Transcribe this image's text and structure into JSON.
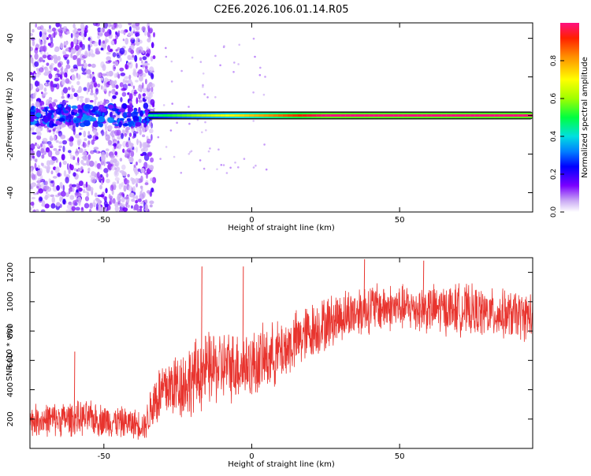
{
  "title": "C2E6.2026.106.01.14.R05",
  "chart_data": [
    {
      "type": "heatmap",
      "xlabel": "Height of straight line (km)",
      "ylabel": "Frequency (Hz)",
      "xlim": [
        -75,
        95
      ],
      "ylim": [
        -50,
        48
      ],
      "xticks": [
        -50,
        0,
        50
      ],
      "yticks": [
        40,
        20,
        0,
        -20,
        -40
      ],
      "colorbar": {
        "label": "Normalized spectral amplitude",
        "range": [
          0,
          1
        ],
        "ticks": [
          0.0,
          0.2,
          0.4,
          0.6,
          0.8
        ]
      },
      "features": [
        {
          "name": "broadband noise region",
          "x_range": [
            -75,
            -35
          ],
          "amplitude": "low (0.1-0.3)"
        },
        {
          "name": "signal line",
          "frequency_hz": 0,
          "x_range": [
            -35,
            95
          ],
          "amplitude_left": 0.45,
          "amplitude_right": 1.0
        }
      ]
    },
    {
      "type": "line",
      "xlabel": "Height of straight line (km)",
      "ylabel": "SNR (10 * v/v)",
      "xlim": [
        -75,
        95
      ],
      "ylim": [
        0,
        1300
      ],
      "xticks": [
        -50,
        0,
        50
      ],
      "yticks": [
        200,
        400,
        600,
        800,
        1000,
        1200
      ],
      "color": "#e8342e",
      "series": [
        {
          "name": "SNR",
          "x": [
            -75,
            -65,
            -55,
            -45,
            -36,
            -33,
            -28,
            -22,
            -15,
            -8,
            0,
            10,
            20,
            30,
            40,
            50,
            60,
            70,
            80,
            95
          ],
          "mean": [
            190,
            200,
            205,
            180,
            160,
            330,
            420,
            450,
            540,
            560,
            570,
            660,
            800,
            900,
            960,
            960,
            950,
            950,
            920,
            900
          ],
          "spread": [
            110,
            120,
            120,
            110,
            100,
            220,
            230,
            260,
            260,
            250,
            240,
            220,
            200,
            180,
            180,
            160,
            170,
            180,
            170,
            170
          ]
        }
      ],
      "spikes": [
        {
          "x": -60,
          "y": 660
        },
        {
          "x": -17,
          "y": 1240
        },
        {
          "x": -3,
          "y": 1240
        },
        {
          "x": 38,
          "y": 1290
        },
        {
          "x": 58,
          "y": 1280
        }
      ]
    }
  ]
}
